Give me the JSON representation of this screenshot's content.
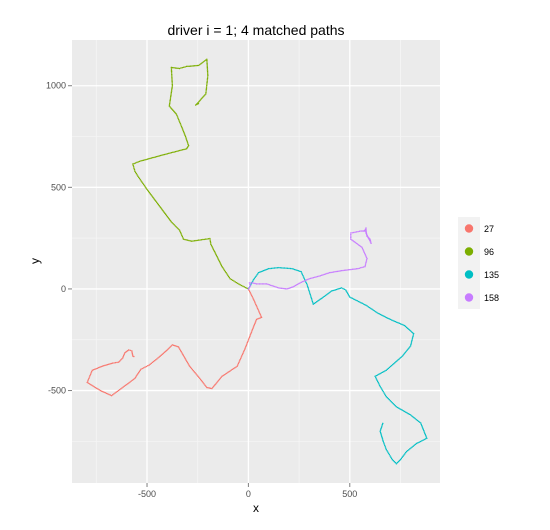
{
  "chart_data": {
    "type": "scatter",
    "title": "driver i = 1; 4 matched paths",
    "xlabel": "x",
    "ylabel": "y",
    "xlim": [
      -870,
      945
    ],
    "ylim": [
      -955,
      1225
    ],
    "xticks": [
      -500,
      0,
      500
    ],
    "yticks": [
      -500,
      0,
      500,
      1000
    ],
    "grid": true,
    "legend_position": "right",
    "series": [
      {
        "name": "27",
        "color": "#F8766D",
        "points": [
          [
            0,
            0
          ],
          [
            25,
            -50
          ],
          [
            45,
            -95
          ],
          [
            65,
            -140
          ],
          [
            40,
            -150
          ],
          [
            20,
            -200
          ],
          [
            -15,
            -290
          ],
          [
            -55,
            -380
          ],
          [
            -130,
            -430
          ],
          [
            -180,
            -490
          ],
          [
            -205,
            -485
          ],
          [
            -240,
            -440
          ],
          [
            -290,
            -380
          ],
          [
            -345,
            -285
          ],
          [
            -375,
            -275
          ],
          [
            -400,
            -300
          ],
          [
            -440,
            -335
          ],
          [
            -490,
            -375
          ],
          [
            -530,
            -395
          ],
          [
            -560,
            -440
          ],
          [
            -600,
            -470
          ],
          [
            -675,
            -525
          ],
          [
            -730,
            -500
          ],
          [
            -795,
            -460
          ],
          [
            -770,
            -400
          ],
          [
            -720,
            -380
          ],
          [
            -670,
            -365
          ],
          [
            -640,
            -360
          ],
          [
            -620,
            -340
          ],
          [
            -610,
            -315
          ],
          [
            -590,
            -300
          ],
          [
            -575,
            -305
          ],
          [
            -570,
            -330
          ],
          [
            -560,
            -335
          ]
        ]
      },
      {
        "name": "96",
        "color": "#7CAE00",
        "points": [
          [
            0,
            0
          ],
          [
            -40,
            20
          ],
          [
            -90,
            50
          ],
          [
            -130,
            110
          ],
          [
            -185,
            220
          ],
          [
            -190,
            248
          ],
          [
            -280,
            235
          ],
          [
            -320,
            245
          ],
          [
            -340,
            290
          ],
          [
            -380,
            330
          ],
          [
            -440,
            410
          ],
          [
            -500,
            490
          ],
          [
            -545,
            555
          ],
          [
            -560,
            580
          ],
          [
            -570,
            615
          ],
          [
            -530,
            630
          ],
          [
            -420,
            660
          ],
          [
            -305,
            690
          ],
          [
            -295,
            705
          ],
          [
            -310,
            750
          ],
          [
            -330,
            800
          ],
          [
            -355,
            860
          ],
          [
            -390,
            900
          ],
          [
            -375,
            1000
          ],
          [
            -380,
            1090
          ],
          [
            -340,
            1085
          ],
          [
            -305,
            1095
          ],
          [
            -245,
            1100
          ],
          [
            -205,
            1130
          ],
          [
            -200,
            1050
          ],
          [
            -210,
            960
          ],
          [
            -250,
            915
          ],
          [
            -260,
            905
          ],
          [
            -240,
            915
          ]
        ]
      },
      {
        "name": "135",
        "color": "#00BFC4",
        "points": [
          [
            0,
            0
          ],
          [
            25,
            45
          ],
          [
            50,
            80
          ],
          [
            100,
            100
          ],
          [
            150,
            105
          ],
          [
            215,
            100
          ],
          [
            260,
            85
          ],
          [
            290,
            20
          ],
          [
            320,
            -75
          ],
          [
            370,
            -40
          ],
          [
            410,
            -10
          ],
          [
            460,
            5
          ],
          [
            480,
            -5
          ],
          [
            500,
            -40
          ],
          [
            580,
            -80
          ],
          [
            640,
            -120
          ],
          [
            700,
            -150
          ],
          [
            770,
            -180
          ],
          [
            815,
            -220
          ],
          [
            800,
            -280
          ],
          [
            760,
            -330
          ],
          [
            680,
            -400
          ],
          [
            625,
            -430
          ],
          [
            650,
            -480
          ],
          [
            680,
            -530
          ],
          [
            730,
            -580
          ],
          [
            800,
            -620
          ],
          [
            850,
            -660
          ],
          [
            880,
            -735
          ],
          [
            830,
            -760
          ],
          [
            780,
            -800
          ],
          [
            750,
            -840
          ],
          [
            730,
            -860
          ],
          [
            710,
            -840
          ],
          [
            680,
            -790
          ],
          [
            665,
            -750
          ],
          [
            650,
            -700
          ],
          [
            665,
            -655
          ]
        ]
      },
      {
        "name": "158",
        "color": "#C77CFF",
        "points": [
          [
            0,
            0
          ],
          [
            10,
            15
          ],
          [
            5,
            30
          ],
          [
            20,
            30
          ],
          [
            40,
            25
          ],
          [
            90,
            25
          ],
          [
            150,
            5
          ],
          [
            190,
            0
          ],
          [
            220,
            10
          ],
          [
            255,
            30
          ],
          [
            300,
            50
          ],
          [
            355,
            65
          ],
          [
            400,
            80
          ],
          [
            460,
            90
          ],
          [
            540,
            100
          ],
          [
            575,
            110
          ],
          [
            585,
            150
          ],
          [
            560,
            205
          ],
          [
            505,
            245
          ],
          [
            505,
            275
          ],
          [
            555,
            285
          ],
          [
            580,
            285
          ],
          [
            585,
            260
          ],
          [
            600,
            245
          ],
          [
            605,
            225
          ],
          [
            580,
            275
          ],
          [
            580,
            300
          ],
          [
            570,
            280
          ]
        ]
      }
    ]
  }
}
